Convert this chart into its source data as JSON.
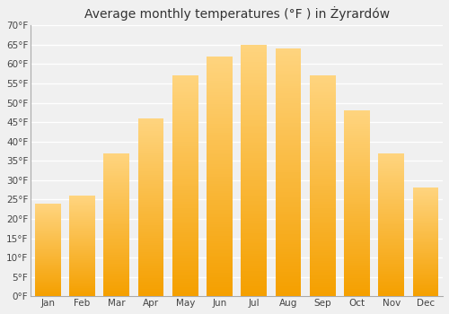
{
  "title": "Average monthly temperatures (°F ) in Żyrardów",
  "months": [
    "Jan",
    "Feb",
    "Mar",
    "Apr",
    "May",
    "Jun",
    "Jul",
    "Aug",
    "Sep",
    "Oct",
    "Nov",
    "Dec"
  ],
  "values": [
    24,
    26,
    37,
    46,
    57,
    62,
    65,
    64,
    57,
    48,
    37,
    28
  ],
  "ylim": [
    0,
    70
  ],
  "yticks": [
    0,
    5,
    10,
    15,
    20,
    25,
    30,
    35,
    40,
    45,
    50,
    55,
    60,
    65,
    70
  ],
  "ytick_labels": [
    "0°F",
    "5°F",
    "10°F",
    "15°F",
    "20°F",
    "25°F",
    "30°F",
    "35°F",
    "40°F",
    "45°F",
    "50°F",
    "55°F",
    "60°F",
    "65°F",
    "70°F"
  ],
  "background_color": "#f0f0f0",
  "grid_color": "#ffffff",
  "bar_color_bottom": "#F5A623",
  "bar_color_top": "#FFD580",
  "title_fontsize": 10,
  "tick_fontsize": 7.5
}
